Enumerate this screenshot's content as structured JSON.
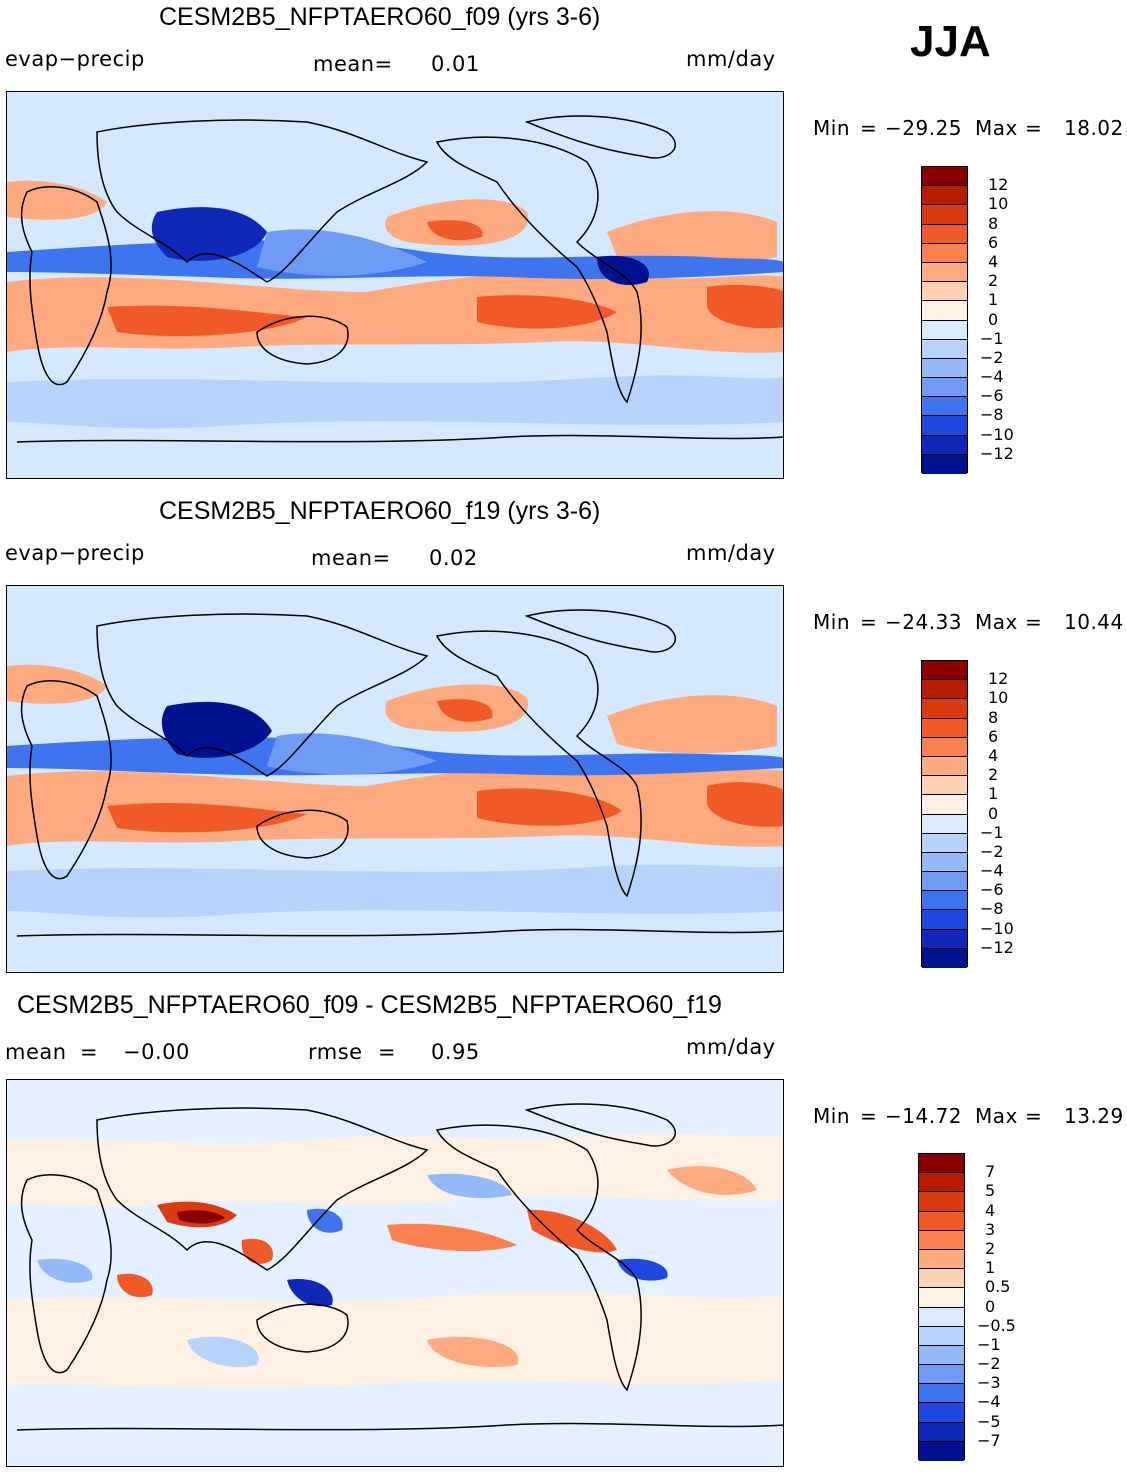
{
  "season": "JJA",
  "panels": [
    {
      "title": "CESM2B5_NFPTAERO60_f09 (yrs 3-6)",
      "left_label": "evap−precip",
      "mid_label": "mean=",
      "mid_value": "0.01",
      "units": "mm/day",
      "min_label": "Min",
      "min_value": "−29.25",
      "max_label": "Max",
      "max_value": "18.02",
      "colorbar_labels": [
        "12",
        "10",
        "8",
        "6",
        "4",
        "2",
        "1",
        "0",
        "−1",
        "−2",
        "−4",
        "−6",
        "−8",
        "−10",
        "−12"
      ]
    },
    {
      "title": "CESM2B5_NFPTAERO60_f19 (yrs 3-6)",
      "left_label": "evap−precip",
      "mid_label": "mean=",
      "mid_value": "0.02",
      "units": "mm/day",
      "min_label": "Min",
      "min_value": "−24.33",
      "max_label": "Max",
      "max_value": "10.44",
      "colorbar_labels": [
        "12",
        "10",
        "8",
        "6",
        "4",
        "2",
        "1",
        "0",
        "−1",
        "−2",
        "−4",
        "−6",
        "−8",
        "−10",
        "−12"
      ]
    },
    {
      "title": "CESM2B5_NFPTAERO60_f09 - CESM2B5_NFPTAERO60_f19",
      "left_label": "mean",
      "left_value": "−0.00",
      "mid_label": "rmse",
      "mid_value": "0.95",
      "units": "mm/day",
      "min_label": "Min",
      "min_value": "−14.72",
      "max_label": "Max",
      "max_value": "13.29",
      "colorbar_labels": [
        "7",
        "5",
        "4",
        "3",
        "2",
        "1",
        "0.5",
        "0",
        "−0.5",
        "−1",
        "−2",
        "−3",
        "−4",
        "−5",
        "−7"
      ]
    }
  ],
  "colors": {
    "mean_scale": [
      "#8a0000",
      "#b51c00",
      "#d93a10",
      "#f05a28",
      "#fb8050",
      "#fdaa80",
      "#fed0b4",
      "#fef0e2",
      "#d8ebff",
      "#b7d3fa",
      "#94b9f7",
      "#6f9bf5",
      "#3f74ef",
      "#2048e0",
      "#1028b8",
      "#00128f"
    ],
    "diff_scale": [
      "#8a0000",
      "#b51c00",
      "#d93a10",
      "#f05a28",
      "#fb8050",
      "#fdaa80",
      "#fed0b4",
      "#fef0e2",
      "#d8ebff",
      "#b7d3fa",
      "#94b9f7",
      "#6f9bf5",
      "#3f74ef",
      "#2048e0",
      "#1028b8",
      "#00128f"
    ]
  }
}
